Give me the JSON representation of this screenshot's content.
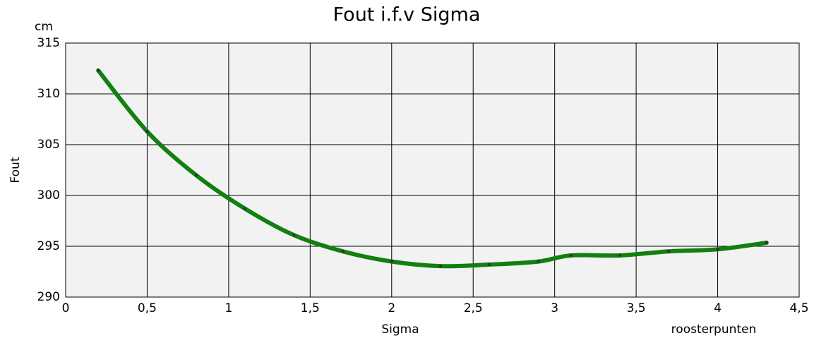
{
  "chart_data": {
    "type": "line",
    "title": "Fout i.f.v Sigma",
    "y_unit": "cm",
    "y_label": "Fout",
    "x_label": "Sigma",
    "x_note": "roosterpunten",
    "x": [
      0.2,
      0.5,
      0.8,
      1.1,
      1.4,
      1.7,
      2.0,
      2.3,
      2.6,
      2.9,
      3.1,
      3.4,
      3.7,
      4.0,
      4.3
    ],
    "series": [
      {
        "name": "Fout",
        "color": "#118011",
        "values": [
          312.3,
          306.3,
          302.0,
          298.7,
          296.1,
          294.5,
          293.5,
          293.05,
          293.2,
          293.5,
          294.1,
          294.1,
          294.5,
          294.7,
          295.35
        ]
      }
    ],
    "xlim": [
      0,
      4.5
    ],
    "xticks": [
      0,
      {
        "value": 0.5,
        "label": "0,5"
      },
      1,
      {
        "value": 1.5,
        "label": "1,5"
      },
      2,
      {
        "value": 2.5,
        "label": "2,5"
      },
      3,
      {
        "value": 3.5,
        "label": "3,5"
      },
      4,
      {
        "value": 4.5,
        "label": "4,5"
      }
    ],
    "ylim": [
      290,
      315
    ],
    "yticks": [
      290,
      295,
      300,
      305,
      310,
      315
    ],
    "grid": true
  }
}
